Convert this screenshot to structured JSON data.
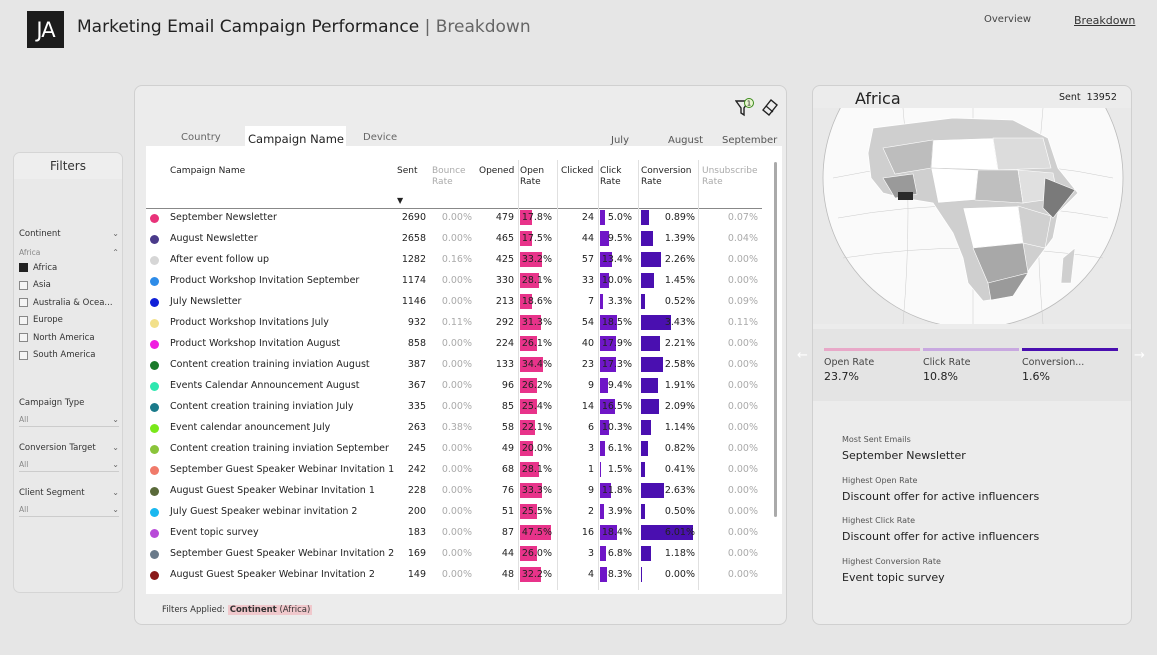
{
  "header": {
    "logo": "JA",
    "title": "Marketing Email Campaign Performance",
    "separator": "|",
    "subtitle": "Breakdown",
    "nav": {
      "overview": "Overview",
      "breakdown": "Breakdown"
    }
  },
  "filters": {
    "title": "Filters",
    "continent": {
      "label": "Continent",
      "selected_group": "Africa",
      "options": [
        {
          "label": "Africa",
          "checked": true
        },
        {
          "label": "Asia",
          "checked": false
        },
        {
          "label": "Australia & Ocea...",
          "checked": false
        },
        {
          "label": "Europe",
          "checked": false
        },
        {
          "label": "North America",
          "checked": false
        },
        {
          "label": "South America",
          "checked": false
        }
      ]
    },
    "campaign_type": {
      "label": "Campaign Type",
      "value": "All"
    },
    "conversion_target": {
      "label": "Conversion Target",
      "value": "All"
    },
    "client_segment": {
      "label": "Client Segment",
      "value": "All"
    }
  },
  "tabs": [
    "Country",
    "Campaign Name",
    "Device"
  ],
  "active_tab": "Campaign Name",
  "months": [
    "July",
    "August",
    "September"
  ],
  "table": {
    "headers": {
      "name": "Campaign Name",
      "sent": "Sent",
      "bounce": "Bounce Rate",
      "opened": "Opened",
      "open_rate": "Open Rate",
      "clicked": "Clicked",
      "click_rate": "Click Rate",
      "conversion": "Conversion Rate",
      "unsub": "Unsubscribe Rate"
    },
    "colors": {
      "open": "#e8338a",
      "click": "#6f16c7",
      "conv": "#4a0fb0"
    },
    "rows": [
      {
        "color": "#e8337a",
        "name": "September Newsletter",
        "sent": "2690",
        "bounce": "0.00%",
        "opened": "479",
        "open_rate": "17.8%",
        "open_v": 17.8,
        "clicked": "24",
        "click_rate": "5.0%",
        "click_v": 5.0,
        "conv": "0.89%",
        "conv_v": 0.89,
        "unsub": "0.07%"
      },
      {
        "color": "#4a3a8a",
        "name": "August Newsletter",
        "sent": "2658",
        "bounce": "0.00%",
        "opened": "465",
        "open_rate": "17.5%",
        "open_v": 17.5,
        "clicked": "44",
        "click_rate": "9.5%",
        "click_v": 9.5,
        "conv": "1.39%",
        "conv_v": 1.39,
        "unsub": "0.04%"
      },
      {
        "color": "#d6d6d6",
        "name": "After event follow up",
        "sent": "1282",
        "bounce": "0.16%",
        "opened": "425",
        "open_rate": "33.2%",
        "open_v": 33.2,
        "clicked": "57",
        "click_rate": "13.4%",
        "click_v": 13.4,
        "conv": "2.26%",
        "conv_v": 2.26,
        "unsub": "0.00%"
      },
      {
        "color": "#2e8ce8",
        "name": "Product Workshop Invitation September",
        "sent": "1174",
        "bounce": "0.00%",
        "opened": "330",
        "open_rate": "28.1%",
        "open_v": 28.1,
        "clicked": "33",
        "click_rate": "10.0%",
        "click_v": 10.0,
        "conv": "1.45%",
        "conv_v": 1.45,
        "unsub": "0.00%"
      },
      {
        "color": "#1020d8",
        "name": "July Newsletter",
        "sent": "1146",
        "bounce": "0.00%",
        "opened": "213",
        "open_rate": "18.6%",
        "open_v": 18.6,
        "clicked": "7",
        "click_rate": "3.3%",
        "click_v": 3.3,
        "conv": "0.52%",
        "conv_v": 0.52,
        "unsub": "0.09%"
      },
      {
        "color": "#f2e08a",
        "name": "Product Workshop Invitations July",
        "sent": "932",
        "bounce": "0.11%",
        "opened": "292",
        "open_rate": "31.3%",
        "open_v": 31.3,
        "clicked": "54",
        "click_rate": "18.5%",
        "click_v": 18.5,
        "conv": "3.43%",
        "conv_v": 3.43,
        "unsub": "0.11%"
      },
      {
        "color": "#f01ee0",
        "name": "Product Workshop Invitation August",
        "sent": "858",
        "bounce": "0.00%",
        "opened": "224",
        "open_rate": "26.1%",
        "open_v": 26.1,
        "clicked": "40",
        "click_rate": "17.9%",
        "click_v": 17.9,
        "conv": "2.21%",
        "conv_v": 2.21,
        "unsub": "0.00%"
      },
      {
        "color": "#1a7a2a",
        "name": "Content creation training inviation August",
        "sent": "387",
        "bounce": "0.00%",
        "opened": "133",
        "open_rate": "34.4%",
        "open_v": 34.4,
        "clicked": "23",
        "click_rate": "17.3%",
        "click_v": 17.3,
        "conv": "2.58%",
        "conv_v": 2.58,
        "unsub": "0.00%"
      },
      {
        "color": "#2ee8b0",
        "name": "Events Calendar Announcement August",
        "sent": "367",
        "bounce": "0.00%",
        "opened": "96",
        "open_rate": "26.2%",
        "open_v": 26.2,
        "clicked": "9",
        "click_rate": "9.4%",
        "click_v": 9.4,
        "conv": "1.91%",
        "conv_v": 1.91,
        "unsub": "0.00%"
      },
      {
        "color": "#1a7a8a",
        "name": "Content creation training inviation July",
        "sent": "335",
        "bounce": "0.00%",
        "opened": "85",
        "open_rate": "25.4%",
        "open_v": 25.4,
        "clicked": "14",
        "click_rate": "16.5%",
        "click_v": 16.5,
        "conv": "2.09%",
        "conv_v": 2.09,
        "unsub": "0.00%"
      },
      {
        "color": "#7ae81a",
        "name": "Event calendar anouncement July",
        "sent": "263",
        "bounce": "0.38%",
        "opened": "58",
        "open_rate": "22.1%",
        "open_v": 22.1,
        "clicked": "6",
        "click_rate": "10.3%",
        "click_v": 10.3,
        "conv": "1.14%",
        "conv_v": 1.14,
        "unsub": "0.00%"
      },
      {
        "color": "#8ac43a",
        "name": "Content creation training inviation September",
        "sent": "245",
        "bounce": "0.00%",
        "opened": "49",
        "open_rate": "20.0%",
        "open_v": 20.0,
        "clicked": "3",
        "click_rate": "6.1%",
        "click_v": 6.1,
        "conv": "0.82%",
        "conv_v": 0.82,
        "unsub": "0.00%"
      },
      {
        "color": "#f07a6a",
        "name": "September Guest Speaker Webinar Invitation 1",
        "sent": "242",
        "bounce": "0.00%",
        "opened": "68",
        "open_rate": "28.1%",
        "open_v": 28.1,
        "clicked": "1",
        "click_rate": "1.5%",
        "click_v": 1.5,
        "conv": "0.41%",
        "conv_v": 0.41,
        "unsub": "0.00%"
      },
      {
        "color": "#5a6a3a",
        "name": "August Guest Speaker Webinar Invitation 1",
        "sent": "228",
        "bounce": "0.00%",
        "opened": "76",
        "open_rate": "33.3%",
        "open_v": 33.3,
        "clicked": "9",
        "click_rate": "11.8%",
        "click_v": 11.8,
        "conv": "2.63%",
        "conv_v": 2.63,
        "unsub": "0.00%"
      },
      {
        "color": "#1ab8f0",
        "name": "July Guest Speaker webinar invitation 2",
        "sent": "200",
        "bounce": "0.00%",
        "opened": "51",
        "open_rate": "25.5%",
        "open_v": 25.5,
        "clicked": "2",
        "click_rate": "3.9%",
        "click_v": 3.9,
        "conv": "0.50%",
        "conv_v": 0.5,
        "unsub": "0.00%"
      },
      {
        "color": "#b84ad8",
        "name": "Event topic survey",
        "sent": "183",
        "bounce": "0.00%",
        "opened": "87",
        "open_rate": "47.5%",
        "open_v": 47.5,
        "clicked": "16",
        "click_rate": "18.4%",
        "click_v": 18.4,
        "conv": "6.01%",
        "conv_v": 6.01,
        "unsub": "0.00%"
      },
      {
        "color": "#6a7a8a",
        "name": "September Guest Speaker Webinar Invitation 2",
        "sent": "169",
        "bounce": "0.00%",
        "opened": "44",
        "open_rate": "26.0%",
        "open_v": 26.0,
        "clicked": "3",
        "click_rate": "6.8%",
        "click_v": 6.8,
        "conv": "1.18%",
        "conv_v": 1.18,
        "unsub": "0.00%"
      },
      {
        "color": "#8a1a1a",
        "name": "August Guest Speaker Webinar Invitation 2",
        "sent": "149",
        "bounce": "0.00%",
        "opened": "48",
        "open_rate": "32.2%",
        "open_v": 32.2,
        "clicked": "4",
        "click_rate": "8.3%",
        "click_v": 8.3,
        "conv": "0.00%",
        "conv_v": 0.0,
        "unsub": "0.00%"
      }
    ]
  },
  "footer": {
    "prefix": "Filters Applied:",
    "field": "Continent",
    "value": "(Africa)"
  },
  "region": {
    "name": "Africa",
    "sent_label": "Sent",
    "sent_value": "13952",
    "kpis": [
      {
        "label": "Open Rate",
        "value": "23.7%",
        "color": "#e8a8c8"
      },
      {
        "label": "Click Rate",
        "value": "10.8%",
        "color": "#c8a8e0"
      },
      {
        "label": "Conversion...",
        "value": "1.6%",
        "color": "#4a0fb0"
      }
    ],
    "highlights": [
      {
        "label": "Most Sent Emails",
        "value": "September Newsletter"
      },
      {
        "label": "Highest Open Rate",
        "value": "Discount offer for active influencers"
      },
      {
        "label": "Highest Click Rate",
        "value": "Discount offer for active influencers"
      },
      {
        "label": "Highest Conversion Rate",
        "value": "Event topic survey"
      }
    ]
  }
}
